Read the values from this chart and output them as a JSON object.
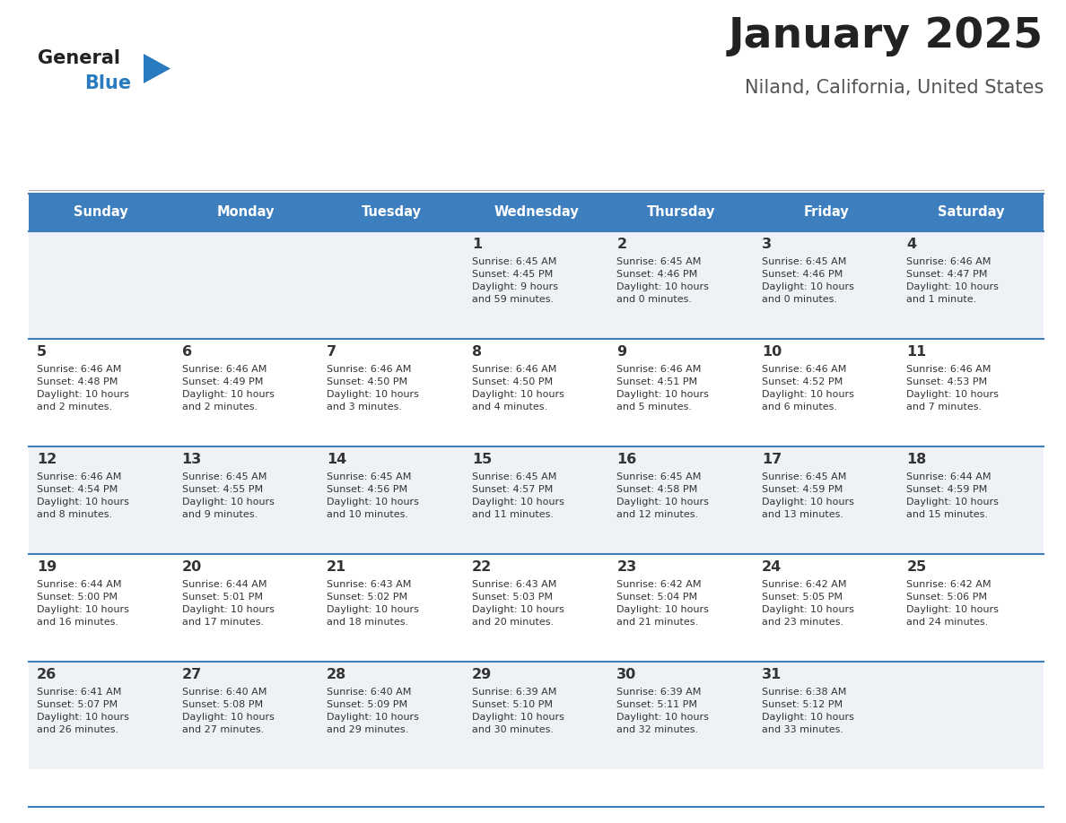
{
  "title": "January 2025",
  "subtitle": "Niland, California, United States",
  "days_of_week": [
    "Sunday",
    "Monday",
    "Tuesday",
    "Wednesday",
    "Thursday",
    "Friday",
    "Saturday"
  ],
  "header_bg": "#3d7ebf",
  "header_text_color": "#ffffff",
  "row_bg_light": "#eef2f7",
  "row_bg_white": "#ffffff",
  "cell_text_color": "#333333",
  "divider_color": "#3d7ebf",
  "title_color": "#222222",
  "subtitle_color": "#555555",
  "logo_general_color": "#222222",
  "logo_blue_color": "#2a7abf",
  "calendar_data": [
    [
      {
        "day": null,
        "text": ""
      },
      {
        "day": null,
        "text": ""
      },
      {
        "day": null,
        "text": ""
      },
      {
        "day": 1,
        "text": "Sunrise: 6:45 AM\nSunset: 4:45 PM\nDaylight: 9 hours\nand 59 minutes."
      },
      {
        "day": 2,
        "text": "Sunrise: 6:45 AM\nSunset: 4:46 PM\nDaylight: 10 hours\nand 0 minutes."
      },
      {
        "day": 3,
        "text": "Sunrise: 6:45 AM\nSunset: 4:46 PM\nDaylight: 10 hours\nand 0 minutes."
      },
      {
        "day": 4,
        "text": "Sunrise: 6:46 AM\nSunset: 4:47 PM\nDaylight: 10 hours\nand 1 minute."
      }
    ],
    [
      {
        "day": 5,
        "text": "Sunrise: 6:46 AM\nSunset: 4:48 PM\nDaylight: 10 hours\nand 2 minutes."
      },
      {
        "day": 6,
        "text": "Sunrise: 6:46 AM\nSunset: 4:49 PM\nDaylight: 10 hours\nand 2 minutes."
      },
      {
        "day": 7,
        "text": "Sunrise: 6:46 AM\nSunset: 4:50 PM\nDaylight: 10 hours\nand 3 minutes."
      },
      {
        "day": 8,
        "text": "Sunrise: 6:46 AM\nSunset: 4:50 PM\nDaylight: 10 hours\nand 4 minutes."
      },
      {
        "day": 9,
        "text": "Sunrise: 6:46 AM\nSunset: 4:51 PM\nDaylight: 10 hours\nand 5 minutes."
      },
      {
        "day": 10,
        "text": "Sunrise: 6:46 AM\nSunset: 4:52 PM\nDaylight: 10 hours\nand 6 minutes."
      },
      {
        "day": 11,
        "text": "Sunrise: 6:46 AM\nSunset: 4:53 PM\nDaylight: 10 hours\nand 7 minutes."
      }
    ],
    [
      {
        "day": 12,
        "text": "Sunrise: 6:46 AM\nSunset: 4:54 PM\nDaylight: 10 hours\nand 8 minutes."
      },
      {
        "day": 13,
        "text": "Sunrise: 6:45 AM\nSunset: 4:55 PM\nDaylight: 10 hours\nand 9 minutes."
      },
      {
        "day": 14,
        "text": "Sunrise: 6:45 AM\nSunset: 4:56 PM\nDaylight: 10 hours\nand 10 minutes."
      },
      {
        "day": 15,
        "text": "Sunrise: 6:45 AM\nSunset: 4:57 PM\nDaylight: 10 hours\nand 11 minutes."
      },
      {
        "day": 16,
        "text": "Sunrise: 6:45 AM\nSunset: 4:58 PM\nDaylight: 10 hours\nand 12 minutes."
      },
      {
        "day": 17,
        "text": "Sunrise: 6:45 AM\nSunset: 4:59 PM\nDaylight: 10 hours\nand 13 minutes."
      },
      {
        "day": 18,
        "text": "Sunrise: 6:44 AM\nSunset: 4:59 PM\nDaylight: 10 hours\nand 15 minutes."
      }
    ],
    [
      {
        "day": 19,
        "text": "Sunrise: 6:44 AM\nSunset: 5:00 PM\nDaylight: 10 hours\nand 16 minutes."
      },
      {
        "day": 20,
        "text": "Sunrise: 6:44 AM\nSunset: 5:01 PM\nDaylight: 10 hours\nand 17 minutes."
      },
      {
        "day": 21,
        "text": "Sunrise: 6:43 AM\nSunset: 5:02 PM\nDaylight: 10 hours\nand 18 minutes."
      },
      {
        "day": 22,
        "text": "Sunrise: 6:43 AM\nSunset: 5:03 PM\nDaylight: 10 hours\nand 20 minutes."
      },
      {
        "day": 23,
        "text": "Sunrise: 6:42 AM\nSunset: 5:04 PM\nDaylight: 10 hours\nand 21 minutes."
      },
      {
        "day": 24,
        "text": "Sunrise: 6:42 AM\nSunset: 5:05 PM\nDaylight: 10 hours\nand 23 minutes."
      },
      {
        "day": 25,
        "text": "Sunrise: 6:42 AM\nSunset: 5:06 PM\nDaylight: 10 hours\nand 24 minutes."
      }
    ],
    [
      {
        "day": 26,
        "text": "Sunrise: 6:41 AM\nSunset: 5:07 PM\nDaylight: 10 hours\nand 26 minutes."
      },
      {
        "day": 27,
        "text": "Sunrise: 6:40 AM\nSunset: 5:08 PM\nDaylight: 10 hours\nand 27 minutes."
      },
      {
        "day": 28,
        "text": "Sunrise: 6:40 AM\nSunset: 5:09 PM\nDaylight: 10 hours\nand 29 minutes."
      },
      {
        "day": 29,
        "text": "Sunrise: 6:39 AM\nSunset: 5:10 PM\nDaylight: 10 hours\nand 30 minutes."
      },
      {
        "day": 30,
        "text": "Sunrise: 6:39 AM\nSunset: 5:11 PM\nDaylight: 10 hours\nand 32 minutes."
      },
      {
        "day": 31,
        "text": "Sunrise: 6:38 AM\nSunset: 5:12 PM\nDaylight: 10 hours\nand 33 minutes."
      },
      {
        "day": null,
        "text": ""
      }
    ]
  ]
}
